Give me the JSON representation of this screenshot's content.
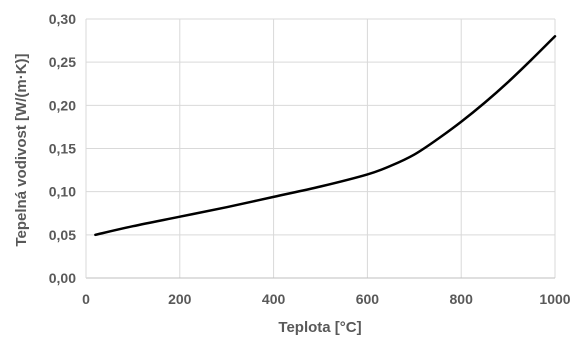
{
  "chart_data": {
    "type": "line",
    "xlabel": "Teplota [°C]",
    "ylabel": "Tepelná vodivost [W/(m·K)]",
    "xlim": [
      0,
      1000
    ],
    "ylim": [
      0.0,
      0.3
    ],
    "x_ticks": [
      0,
      200,
      400,
      600,
      800,
      1000
    ],
    "y_ticks": [
      0.0,
      0.05,
      0.1,
      0.15,
      0.2,
      0.25,
      0.3
    ],
    "x_tick_labels": [
      "0",
      "200",
      "400",
      "600",
      "800",
      "1000"
    ],
    "y_tick_labels": [
      "0,00",
      "0,05",
      "0,10",
      "0,15",
      "0,20",
      "0,25",
      "0,30"
    ],
    "grid": true,
    "legend": "none",
    "series": [
      {
        "color": "#000000",
        "x": [
          20,
          100,
          200,
          300,
          400,
          500,
          600,
          650,
          700,
          750,
          800,
          850,
          900,
          950,
          1000
        ],
        "y": [
          0.05,
          0.06,
          0.071,
          0.082,
          0.094,
          0.106,
          0.12,
          0.13,
          0.143,
          0.161,
          0.181,
          0.203,
          0.227,
          0.253,
          0.28
        ]
      }
    ]
  }
}
